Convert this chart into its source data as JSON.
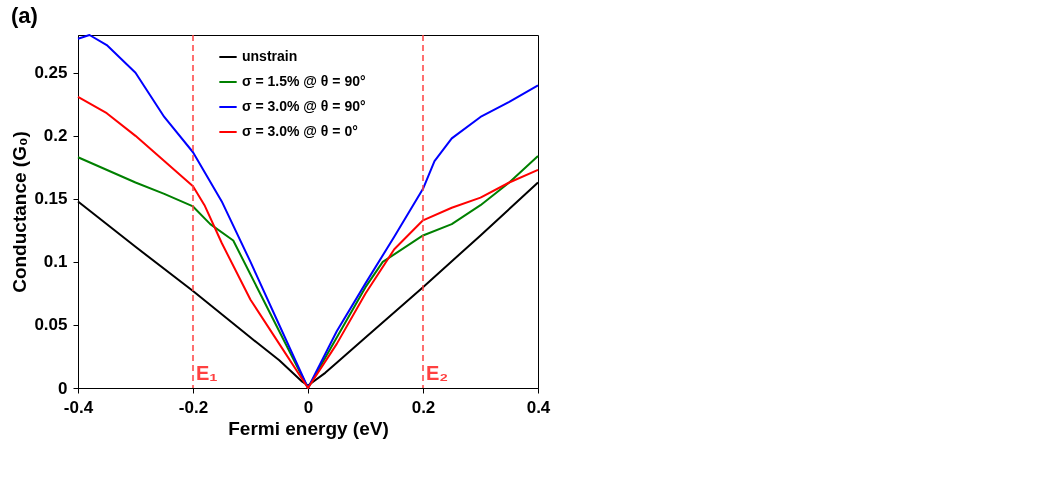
{
  "chart_data": {
    "type": "line",
    "title": "(a)",
    "xlabel": "Fermi energy (eV)",
    "ylabel": "Conductance (G₀)",
    "xlim": [
      -0.4,
      0.4
    ],
    "xticks": [
      -0.4,
      -0.2,
      0,
      0.2,
      0.4
    ],
    "ylim": [
      0,
      0.28
    ],
    "yticks": [
      0,
      0.05,
      0.1,
      0.15,
      0.2,
      0.25
    ],
    "grid": false,
    "legend": "top",
    "line_style": "solid",
    "marker": "none",
    "series": [
      {
        "name": "unstrain",
        "color": "#000000",
        "x": [
          -0.4,
          -0.3,
          -0.2,
          -0.1,
          -0.05,
          -0.01,
          0,
          0.03,
          0.05,
          0.1,
          0.2,
          0.3,
          0.4
        ],
        "values": [
          0.148,
          0.112,
          0.077,
          0.04,
          0.022,
          0.005,
          0.002,
          0.012,
          0.02,
          0.04,
          0.08,
          0.121,
          0.163
        ]
      },
      {
        "name": "σ = 1.5% @ θ = 90°",
        "color": "#008000",
        "x": [
          -0.4,
          -0.3,
          -0.25,
          -0.2,
          -0.17,
          -0.13,
          -0.1,
          -0.05,
          0,
          0.05,
          0.1,
          0.13,
          0.2,
          0.25,
          0.3,
          0.35,
          0.4
        ],
        "values": [
          0.183,
          0.163,
          0.154,
          0.144,
          0.13,
          0.117,
          0.09,
          0.045,
          0,
          0.04,
          0.08,
          0.1,
          0.121,
          0.13,
          0.145,
          0.163,
          0.184
        ]
      },
      {
        "name": "σ = 3.0% @ θ = 90°",
        "color": "#0000ff",
        "x": [
          -0.4,
          -0.38,
          -0.35,
          -0.3,
          -0.25,
          -0.2,
          -0.15,
          -0.1,
          -0.05,
          0,
          0.05,
          0.1,
          0.15,
          0.2,
          0.22,
          0.25,
          0.3,
          0.35,
          0.4
        ],
        "values": [
          0.277,
          0.28,
          0.272,
          0.25,
          0.215,
          0.187,
          0.148,
          0.1,
          0.05,
          0,
          0.045,
          0.083,
          0.12,
          0.158,
          0.18,
          0.198,
          0.215,
          0.227,
          0.24
        ]
      },
      {
        "name": "σ = 3.0% @ θ = 0°",
        "color": "#ff0000",
        "x": [
          -0.4,
          -0.35,
          -0.3,
          -0.25,
          -0.2,
          -0.18,
          -0.15,
          -0.1,
          -0.05,
          0,
          0.05,
          0.1,
          0.15,
          0.2,
          0.25,
          0.3,
          0.35,
          0.4
        ],
        "values": [
          0.231,
          0.218,
          0.2,
          0.18,
          0.16,
          0.145,
          0.115,
          0.07,
          0.035,
          0,
          0.035,
          0.075,
          0.11,
          0.133,
          0.143,
          0.151,
          0.163,
          0.173
        ]
      }
    ],
    "ref_lines": [
      {
        "axis": "x",
        "value": -0.2,
        "label": "E₁",
        "color": "#ff4040",
        "line_style": "dashed"
      },
      {
        "axis": "x",
        "value": 0.2,
        "label": "E₂",
        "color": "#ff4040",
        "line_style": "dashed"
      }
    ]
  }
}
